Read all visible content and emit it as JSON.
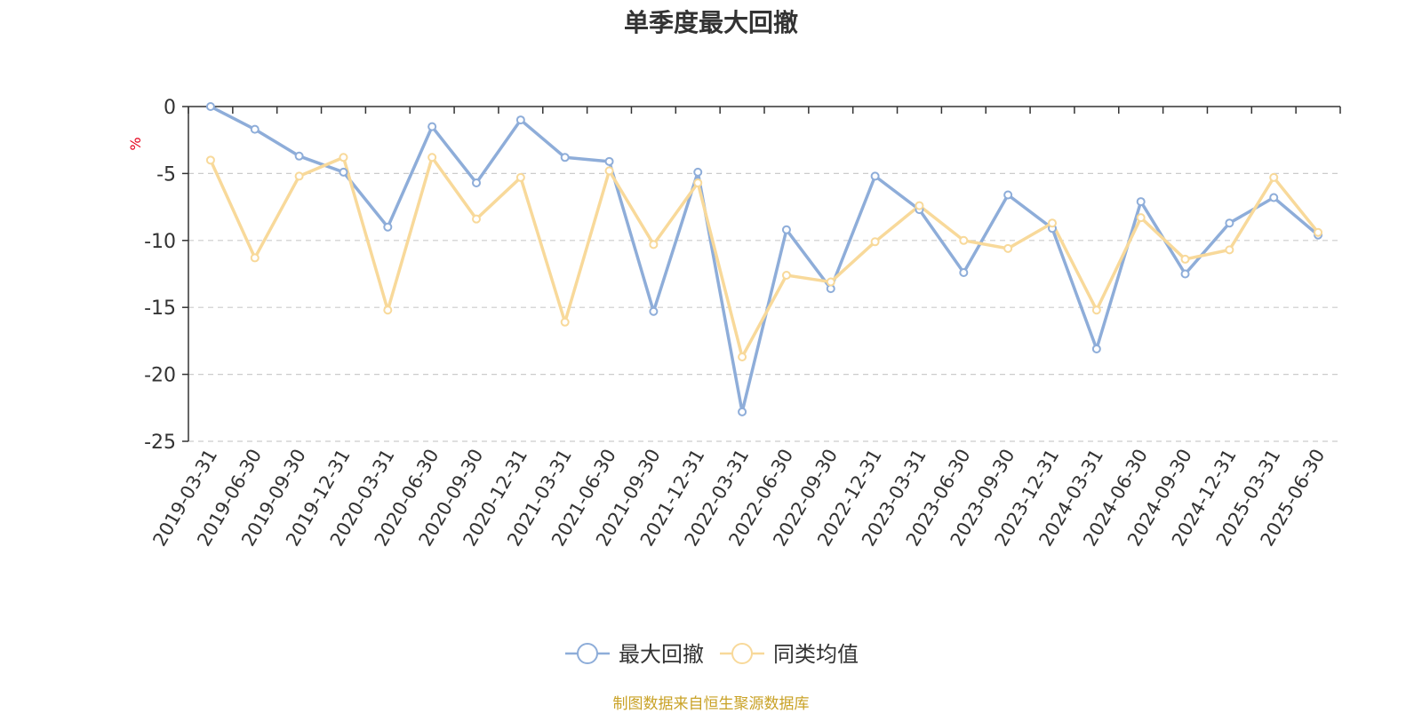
{
  "chart_data": {
    "type": "line",
    "title": "单季度最大回撤",
    "ylabel": "%",
    "ylim": [
      -25,
      0
    ],
    "yticks": [
      0,
      -5,
      -10,
      -15,
      -20,
      -25
    ],
    "grid": true,
    "legend_position": "bottom",
    "categories": [
      "2019-03-31",
      "2019-06-30",
      "2019-09-30",
      "2019-12-31",
      "2020-03-31",
      "2020-06-30",
      "2020-09-30",
      "2020-12-31",
      "2021-03-31",
      "2021-06-30",
      "2021-09-30",
      "2021-12-31",
      "2022-03-31",
      "2022-06-30",
      "2022-09-30",
      "2022-12-31",
      "2023-03-31",
      "2023-06-30",
      "2023-09-30",
      "2023-12-31",
      "2024-03-31",
      "2024-06-30",
      "2024-09-30",
      "2024-12-31",
      "2025-03-31",
      "2025-06-30"
    ],
    "series": [
      {
        "name": "最大回撤",
        "color": "#8eadd9",
        "values": [
          0,
          -1.7,
          -3.7,
          -4.9,
          -9.0,
          -1.5,
          -5.7,
          -1.0,
          -3.8,
          -4.1,
          -15.3,
          -4.9,
          -22.8,
          -9.2,
          -13.6,
          -5.2,
          -7.7,
          -12.4,
          -6.6,
          -9.1,
          -18.1,
          -7.1,
          -12.5,
          -8.7,
          -6.8,
          -9.6
        ]
      },
      {
        "name": "同类均值",
        "color": "#f8d99a",
        "values": [
          -4.0,
          -11.3,
          -5.2,
          -3.8,
          -15.2,
          -3.8,
          -8.4,
          -5.3,
          -16.1,
          -4.8,
          -10.3,
          -5.7,
          -18.7,
          -12.6,
          -13.1,
          -10.1,
          -7.4,
          -10.0,
          -10.6,
          -8.7,
          -15.2,
          -8.3,
          -11.4,
          -10.7,
          -5.3,
          -9.4
        ]
      }
    ]
  },
  "footer": "制图数据来自恒生聚源数据库"
}
